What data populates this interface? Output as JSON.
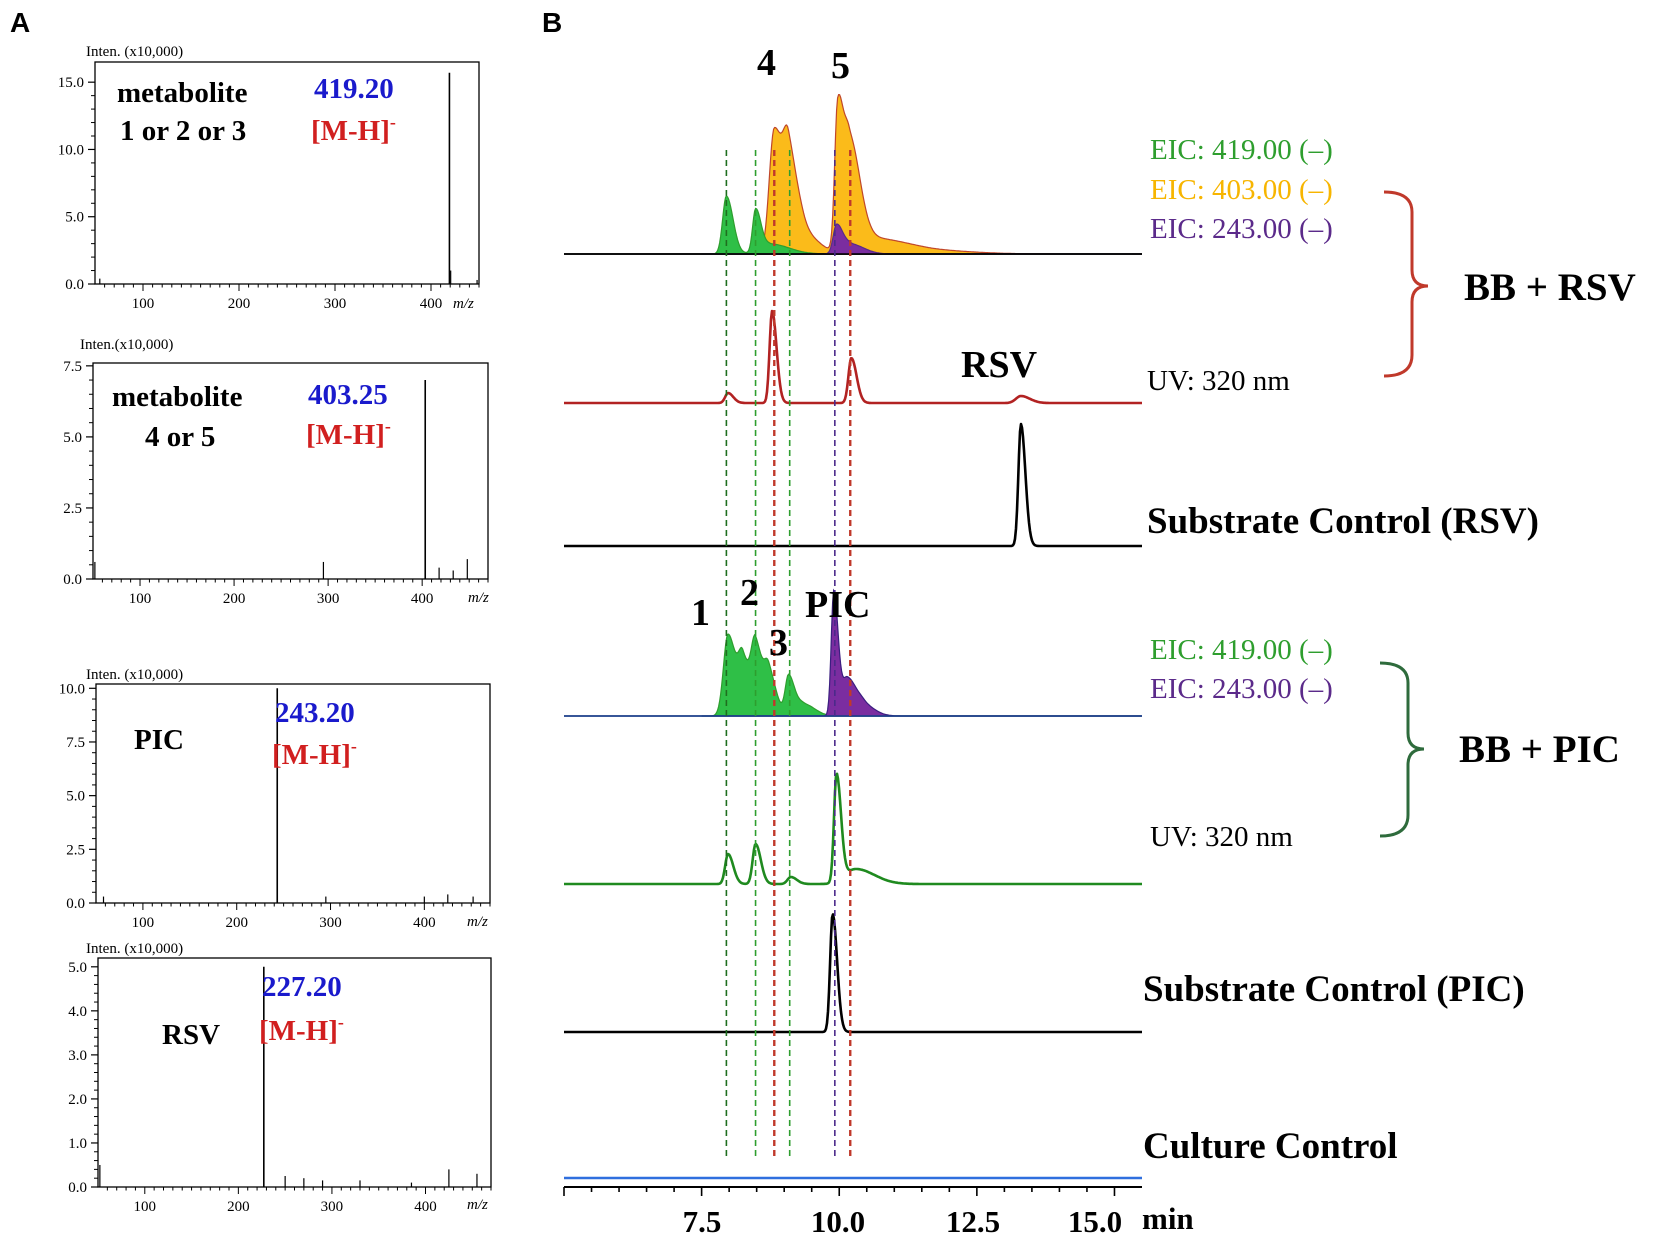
{
  "panels": {
    "a_label": "A",
    "b_label": "B"
  },
  "chart_data": [
    {
      "type": "mass_spectrum",
      "id": "ms1",
      "ylabel": "Inten. (x10,000)",
      "yticks": [
        "0.0",
        "5.0",
        "10.0",
        "15.0"
      ],
      "ylim": [
        0,
        16.5
      ],
      "xticks": [
        "100",
        "200",
        "300",
        "400"
      ],
      "xlim": [
        50,
        450
      ],
      "xunit": "m/z",
      "compound_lines": [
        "metabolite",
        "1 or 2 or 3"
      ],
      "mz_label": "419.20",
      "ion_label": "[M-H]",
      "ion_sup": "-",
      "base_peak": {
        "mz": 419.2,
        "intensity": 15.7
      },
      "minor_peaks": [
        [
          55,
          0.4
        ],
        [
          420.5,
          1.0
        ],
        [
          448,
          0.3
        ]
      ]
    },
    {
      "type": "mass_spectrum",
      "id": "ms2",
      "ylabel": "Inten.(x10,000)",
      "yticks": [
        "0.0",
        "2.5",
        "5.0",
        "7.5"
      ],
      "ylim": [
        0,
        7.6
      ],
      "xticks": [
        "100",
        "200",
        "300",
        "400"
      ],
      "xlim": [
        50,
        470
      ],
      "xunit": "m/z",
      "compound_lines": [
        "metabolite",
        "4 or 5"
      ],
      "mz_label": "403.25",
      "ion_label": "[M-H]",
      "ion_sup": "-",
      "base_peak": {
        "mz": 403.25,
        "intensity": 7.0
      },
      "minor_peaks": [
        [
          52,
          0.6
        ],
        [
          295,
          0.6
        ],
        [
          418,
          0.4
        ],
        [
          433,
          0.3
        ],
        [
          448,
          0.7
        ]
      ]
    },
    {
      "type": "mass_spectrum",
      "id": "ms3",
      "ylabel": "Inten. (x10,000)",
      "yticks": [
        "0.0",
        "2.5",
        "5.0",
        "7.5",
        "10.0"
      ],
      "ylim": [
        0,
        10.2
      ],
      "xticks": [
        "100",
        "200",
        "300",
        "400"
      ],
      "xlim": [
        50,
        470
      ],
      "xunit": "m/z",
      "compound_lines": [
        "PIC"
      ],
      "mz_label": "243.20",
      "ion_label": "[M-H]",
      "ion_sup": "-",
      "base_peak": {
        "mz": 243.2,
        "intensity": 10.0
      },
      "minor_peaks": [
        [
          58,
          0.3
        ],
        [
          295,
          0.3
        ],
        [
          400,
          0.3
        ],
        [
          425,
          0.4
        ],
        [
          452,
          0.3
        ]
      ]
    },
    {
      "type": "mass_spectrum",
      "id": "ms4",
      "ylabel": "Inten. (x10,000)",
      "yticks": [
        "0.0",
        "1.0",
        "2.0",
        "3.0",
        "4.0",
        "5.0"
      ],
      "ylim": [
        0,
        5.2
      ],
      "xticks": [
        "100",
        "200",
        "300",
        "400"
      ],
      "xlim": [
        50,
        470
      ],
      "xunit": "m/z",
      "compound_lines": [
        "RSV"
      ],
      "mz_label": "227.20",
      "ion_label": "[M-H]",
      "ion_sup": "-",
      "base_peak": {
        "mz": 227.2,
        "intensity": 5.0
      },
      "minor_peaks": [
        [
          52,
          0.5
        ],
        [
          250,
          0.25
        ],
        [
          270,
          0.2
        ],
        [
          290,
          0.15
        ],
        [
          330,
          0.15
        ],
        [
          385,
          0.1
        ],
        [
          425,
          0.4
        ],
        [
          455,
          0.3
        ]
      ]
    },
    {
      "type": "chromatogram",
      "id": "lc",
      "xlim": [
        5.0,
        15.5
      ],
      "xticks": [
        "7.5",
        "10.0",
        "12.5",
        "15.0"
      ],
      "xtick_values": [
        7.5,
        10.0,
        12.5,
        15.0
      ],
      "xunit": "min",
      "traces": [
        {
          "name": "EIC 419.00 BB+RSV",
          "color": "#2e9e2e",
          "fill": "#2fbf47",
          "order": 1,
          "peaks": [
            [
              7.95,
              58,
              0.09
            ],
            [
              8.48,
              42,
              0.07
            ],
            [
              8.75,
              10,
              0.25
            ]
          ]
        },
        {
          "name": "EIC 403.00 BB+RSV",
          "color": "#c0472a",
          "fill": "#fbbb1a",
          "order": 0,
          "peaks": [
            [
              8.82,
              125,
              0.12
            ],
            [
              9.08,
              85,
              0.12
            ],
            [
              9.35,
              20,
              0.2
            ],
            [
              9.97,
              138,
              0.07
            ],
            [
              10.18,
              110,
              0.14
            ],
            [
              10.6,
              15,
              0.4
            ],
            [
              11.5,
              4,
              0.6
            ]
          ]
        },
        {
          "name": "EIC 243.00 BB+RSV",
          "color": "#5a2a8a",
          "fill": "#7b2da0",
          "order": 2,
          "peaks": [
            [
              9.95,
              28,
              0.08
            ],
            [
              10.2,
              10,
              0.18
            ]
          ]
        },
        {
          "name": "UV 320 BB+RSV",
          "color": "#b22222",
          "fill": null,
          "order": 3,
          "peaks": [
            [
              7.98,
              10,
              0.07
            ],
            [
              8.78,
              92,
              0.06
            ],
            [
              10.22,
              45,
              0.07
            ],
            [
              13.3,
              7,
              0.12
            ]
          ]
        },
        {
          "name": "Substrate Control RSV",
          "color": "#000000",
          "fill": null,
          "order": 4,
          "peaks": [
            [
              13.3,
              122,
              0.06
            ]
          ]
        },
        {
          "name": "EIC 419.00 BB+PIC",
          "color": "#2e9e2e",
          "fill": "#2fbf47",
          "order": 5,
          "peaks": [
            [
              7.98,
              82,
              0.11
            ],
            [
              8.25,
              50,
              0.1
            ],
            [
              8.48,
              68,
              0.1
            ],
            [
              8.72,
              40,
              0.1
            ],
            [
              9.08,
              40,
              0.08
            ],
            [
              9.35,
              12,
              0.15
            ]
          ]
        },
        {
          "name": "EIC 243.00 BB+PIC",
          "color": "#3b1e80",
          "fill": "#7b2da0",
          "order": 6,
          "peaks": [
            [
              9.9,
              125,
              0.06
            ],
            [
              10.15,
              38,
              0.12
            ],
            [
              10.45,
              10,
              0.15
            ]
          ]
        },
        {
          "name": "UV 320 BB+PIC",
          "color": "#1f8a1f",
          "fill": null,
          "order": 7,
          "peaks": [
            [
              7.98,
              30,
              0.07
            ],
            [
              8.48,
              40,
              0.07
            ],
            [
              9.12,
              7,
              0.08
            ],
            [
              9.95,
              108,
              0.06
            ],
            [
              10.3,
              15,
              0.25
            ]
          ]
        },
        {
          "name": "Substrate Control PIC",
          "color": "#000000",
          "fill": null,
          "order": 8,
          "peaks": [
            [
              9.88,
              118,
              0.06
            ]
          ]
        },
        {
          "name": "Culture Control",
          "color": "#2f6fde",
          "fill": null,
          "order": 9,
          "peaks": []
        }
      ],
      "guide_lines": [
        {
          "rt": 7.95,
          "color": "#1f6e1f"
        },
        {
          "rt": 8.48,
          "color": "#2e9e2e"
        },
        {
          "rt": 9.1,
          "color": "#2e9e2e"
        },
        {
          "rt": 8.82,
          "color": "#c0392b"
        },
        {
          "rt": 10.2,
          "color": "#c0392b"
        },
        {
          "rt": 9.92,
          "color": "#4b2a8a"
        }
      ],
      "peak_labels": [
        "4",
        "5",
        "1",
        "2",
        "3",
        "PIC",
        "RSV"
      ],
      "eic_labels_rsv": [
        {
          "text": "EIC: 419.00 (–)",
          "color": "#2e9e2e"
        },
        {
          "text": "EIC: 403.00 (–)",
          "color": "#f7b500"
        },
        {
          "text": "EIC: 243.00 (–)",
          "color": "#5b2a8a"
        }
      ],
      "eic_labels_pic": [
        {
          "text": "EIC: 419.00 (–)",
          "color": "#2e9e2e"
        },
        {
          "text": "EIC: 243.00 (–)",
          "color": "#5b2a8a"
        }
      ],
      "uv_label": "UV: 320 nm",
      "group_rsv": {
        "label": "BB + RSV",
        "brace_color": "#c0392b"
      },
      "group_pic": {
        "label": "BB + PIC",
        "brace_color": "#2e6b3c"
      },
      "trace_labels": [
        "Substrate Control (RSV)",
        "Substrate Control (PIC)",
        "Culture Control"
      ]
    }
  ]
}
